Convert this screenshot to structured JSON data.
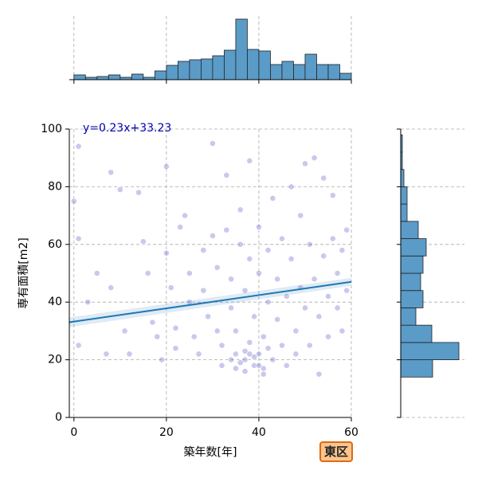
{
  "chart_data": {
    "type": "jointplot",
    "x_label": "築年数[年]",
    "y_label": "専有面積[m2]",
    "badge": "東区",
    "xlim": [
      -1,
      60
    ],
    "ylim": [
      0,
      100
    ],
    "xticks": [
      0,
      20,
      40,
      60
    ],
    "yticks": [
      0,
      20,
      40,
      60,
      80,
      100
    ],
    "grid": true,
    "point_color": "#4b4bc8",
    "hist_color": "#5a9bc8",
    "points": {
      "x": [
        1,
        0,
        1,
        1,
        3,
        5,
        7,
        8,
        8,
        10,
        11,
        12,
        14,
        15,
        16,
        17,
        18,
        19,
        20,
        20,
        21,
        22,
        22,
        23,
        24,
        25,
        25,
        26,
        27,
        28,
        28,
        29,
        30,
        30,
        31,
        31,
        32,
        32,
        33,
        33,
        34,
        34,
        35,
        35,
        35,
        36,
        36,
        37,
        37,
        37,
        38,
        38,
        38,
        39,
        39,
        40,
        40,
        40,
        41,
        41,
        42,
        42,
        43,
        43,
        44,
        44,
        45,
        45,
        46,
        46,
        47,
        47,
        48,
        48,
        49,
        49,
        50,
        50,
        51,
        51,
        52,
        52,
        53,
        53,
        54,
        54,
        55,
        55,
        56,
        56,
        57,
        57,
        58,
        58,
        59,
        59,
        34,
        36,
        38,
        40,
        42,
        39,
        37,
        41
      ],
      "y": [
        94,
        75,
        62,
        25,
        40,
        50,
        22,
        85,
        45,
        79,
        30,
        22,
        78,
        61,
        50,
        33,
        28,
        20,
        87,
        57,
        45,
        31,
        24,
        66,
        70,
        50,
        40,
        28,
        22,
        58,
        44,
        35,
        95,
        63,
        52,
        30,
        25,
        18,
        84,
        65,
        48,
        38,
        30,
        22,
        17,
        60,
        72,
        20,
        16,
        44,
        89,
        55,
        26,
        18,
        35,
        66,
        50,
        22,
        15,
        28,
        58,
        40,
        20,
        76,
        48,
        34,
        25,
        62,
        18,
        42,
        80,
        55,
        30,
        22,
        70,
        45,
        88,
        38,
        60,
        25,
        90,
        48,
        35,
        15,
        83,
        56,
        42,
        28,
        77,
        62,
        50,
        38,
        58,
        30,
        65,
        44,
        20,
        19,
        22,
        18,
        24,
        21,
        23,
        17
      ]
    },
    "regression": {
      "label": "y=0.23x+33.23",
      "slope": 0.23,
      "intercept": 33.23,
      "color": "#1f77b4",
      "label_color": "#0000b0"
    },
    "x_hist": {
      "bins": [
        0,
        2.5,
        5,
        7.5,
        10,
        12.5,
        15,
        17.5,
        20,
        22.5,
        25,
        27.5,
        30,
        32.5,
        35,
        37.5,
        40,
        42.5,
        45,
        47.5,
        50,
        52.5,
        55,
        57.5,
        60
      ],
      "counts": [
        6,
        3,
        4,
        6,
        3,
        7,
        3,
        11,
        18,
        23,
        25,
        26,
        30,
        37,
        76,
        38,
        36,
        19,
        23,
        19,
        32,
        19,
        19,
        8
      ],
      "ylim": [
        0,
        80
      ]
    },
    "y_hist": {
      "bins": [
        14,
        20,
        26,
        32,
        38,
        44,
        50,
        56,
        62,
        68,
        74,
        80,
        86,
        92,
        98
      ],
      "counts": [
        40,
        73,
        39,
        19,
        28,
        25,
        28,
        32,
        22,
        8,
        8,
        4,
        2,
        2
      ],
      "xlim": [
        0,
        80
      ]
    }
  }
}
